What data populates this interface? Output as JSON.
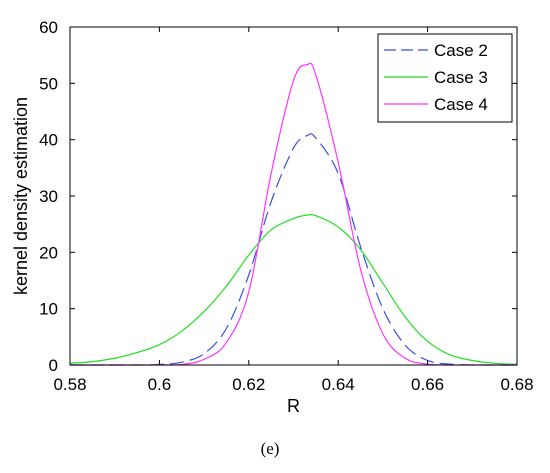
{
  "chart_data": {
    "type": "line",
    "caption": "(e)",
    "xlabel": "R",
    "ylabel": "kernel density estimation",
    "xlim": [
      0.58,
      0.68
    ],
    "ylim": [
      0,
      60
    ],
    "xticks": [
      "0.58",
      "0.6",
      "0.62",
      "0.64",
      "0.66",
      "0.68"
    ],
    "yticks": [
      "0",
      "10",
      "20",
      "30",
      "40",
      "50",
      "60"
    ],
    "grid": false,
    "legend_position": "top-right",
    "x": [
      0.58,
      0.585,
      0.59,
      0.595,
      0.6,
      0.605,
      0.61,
      0.615,
      0.62,
      0.625,
      0.63,
      0.633,
      0.635,
      0.64,
      0.645,
      0.65,
      0.655,
      0.66,
      0.665,
      0.67,
      0.675,
      0.68
    ],
    "series": [
      {
        "name": "Case 2",
        "color": "#3b4fe0",
        "dash": "dashed",
        "values": [
          0.0,
          0.0,
          0.0,
          0.0,
          0.1,
          0.5,
          2.0,
          6.5,
          16.0,
          29.0,
          38.5,
          40.7,
          40.3,
          34.0,
          21.0,
          10.0,
          3.5,
          0.8,
          0.15,
          0.0,
          0.0,
          0.0
        ]
      },
      {
        "name": "Case 3",
        "color": "#22dd22",
        "dash": "solid",
        "values": [
          0.3,
          0.6,
          1.2,
          2.2,
          3.6,
          6.0,
          9.5,
          14.0,
          19.5,
          24.0,
          26.0,
          26.6,
          26.5,
          24.5,
          20.5,
          14.5,
          8.5,
          4.2,
          1.8,
          0.8,
          0.3,
          0.1
        ]
      },
      {
        "name": "Case 4",
        "color": "#ff33ff",
        "dash": "solid",
        "values": [
          0.0,
          0.0,
          0.0,
          0.0,
          0.0,
          0.1,
          1.0,
          4.0,
          13.0,
          34.0,
          50.5,
          53.3,
          51.5,
          36.0,
          17.0,
          5.5,
          1.2,
          0.15,
          0.0,
          0.0,
          0.0,
          0.0
        ]
      }
    ]
  }
}
